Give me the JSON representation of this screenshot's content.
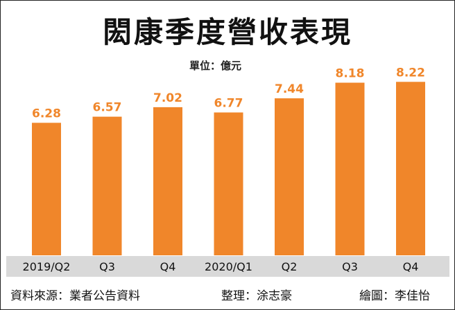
{
  "title": "閎康季度營收表現",
  "unit_label": "單位：億元",
  "footer": {
    "source": "資料來源：業者公告資料",
    "editor": "整理：涂志豪",
    "artist": "繪圖：李佳怡"
  },
  "colors": {
    "bar": "#f0862a",
    "value_label": "#f0862a",
    "band": "#d9d9d9"
  },
  "chart_data": {
    "type": "bar",
    "title": "閎康季度營收表現",
    "unit": "單位：億元",
    "categories": [
      "2019/Q2",
      "Q3",
      "Q4",
      "2020/Q1",
      "Q2",
      "Q3",
      "Q4"
    ],
    "values": [
      6.28,
      6.57,
      7.02,
      6.77,
      7.44,
      8.18,
      8.22
    ],
    "value_labels": [
      "6.28",
      "6.57",
      "7.02",
      "6.77",
      "7.44",
      "8.18",
      "8.22"
    ],
    "ylim": [
      0,
      8.22
    ],
    "grid": false,
    "legend": "none"
  }
}
